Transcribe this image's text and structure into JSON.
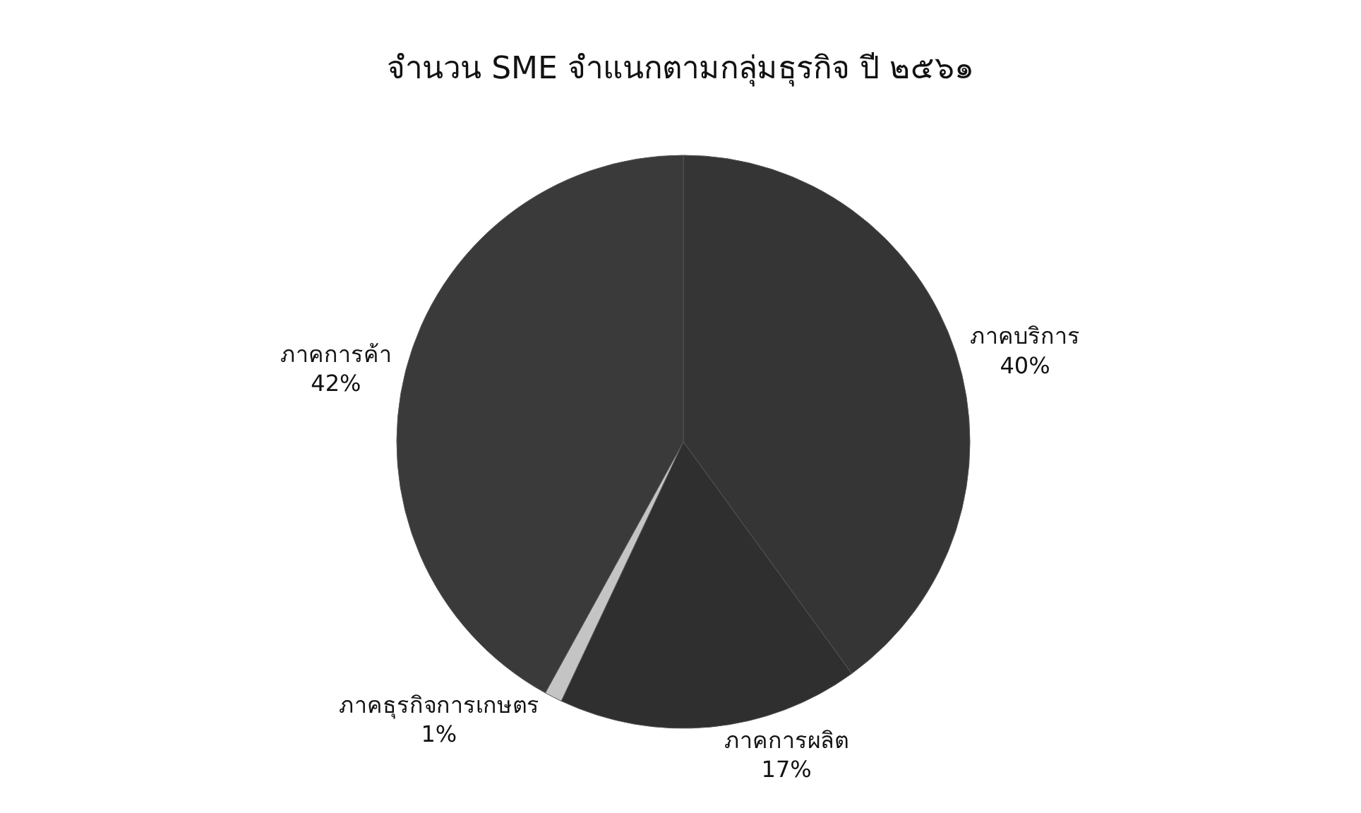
{
  "chart_data": {
    "type": "pie",
    "title": "จำนวน SME จำแนกตามกลุ่มธุรกิจ ปี ๒๕๖๑",
    "categories": [
      "ภาคบริการ",
      "ภาคการผลิต",
      "ภาคธุรกิจการเกษตร",
      "ภาคการค้า"
    ],
    "values": [
      40,
      17,
      1,
      42
    ],
    "value_labels": [
      "40%",
      "17%",
      "1%",
      "42%"
    ],
    "colors": [
      "#353535",
      "#2f2f2f",
      "#c4c4c4",
      "#3a3a3a"
    ],
    "legend": false
  }
}
